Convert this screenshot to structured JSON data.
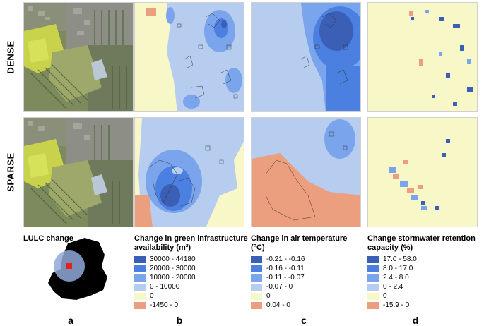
{
  "rows": [
    {
      "label": "DENSE"
    },
    {
      "label": "SPARSE"
    }
  ],
  "columns": [
    {
      "letter": "a",
      "title": "LULC change"
    },
    {
      "letter": "b",
      "title_line1": "Change in green infrastructure",
      "title_line2": "availability (m²)"
    },
    {
      "letter": "c",
      "title_line1": "Change in air temperature",
      "title_line2": "(°C)"
    },
    {
      "letter": "d",
      "title_line1": "Change stormwater retention",
      "title_line2": "capacity (%)"
    }
  ],
  "legends": {
    "green": [
      {
        "label": "30000 - 44180",
        "color": "#3a5fb5"
      },
      {
        "label": "20000 - 30000",
        "color": "#4c80e0"
      },
      {
        "label": "10000 - 20000",
        "color": "#7aa5ec"
      },
      {
        "label": "0 - 10000",
        "color": "#b7cdf0"
      },
      {
        "label": "0",
        "color": "#f7f7c8"
      },
      {
        "label": "-1450 - 0",
        "color": "#ec9f7e"
      }
    ],
    "temperature": [
      {
        "label": "-0.21 - -0.16",
        "color": "#3a5fb5"
      },
      {
        "label": "-0.16 - -0.11",
        "color": "#4c80e0"
      },
      {
        "label": "-0.11 - -0.07",
        "color": "#7aa5ec"
      },
      {
        "label": "-0.07 - 0",
        "color": "#b7cdf0"
      },
      {
        "label": "0",
        "color": "#f7f7c8"
      },
      {
        "label": "0.04 - 0",
        "color": "#ec9f7e"
      }
    ],
    "stormwater": [
      {
        "label": "17.0 - 58.0",
        "color": "#3a5fb5"
      },
      {
        "label": "8.0 - 17.0",
        "color": "#4c80e0"
      },
      {
        "label": "2.4 - 8.0",
        "color": "#7aa5ec"
      },
      {
        "label": "0 - 2.4",
        "color": "#b7cdf0"
      },
      {
        "label": "0",
        "color": "#f7f7c8"
      },
      {
        "label": "-15.9 - 0",
        "color": "#ec9f7e"
      }
    ]
  },
  "location_map": {
    "land": "#000000",
    "circle": "#8fa9d8",
    "marker": "#e8201c"
  }
}
